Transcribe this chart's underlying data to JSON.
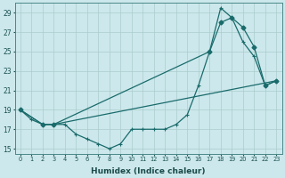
{
  "xlabel": "Humidex (Indice chaleur)",
  "bg_color": "#cce8ec",
  "grid_color": "#aacccc",
  "line_color": "#1a6b6b",
  "xlim": [
    -0.5,
    23.5
  ],
  "ylim": [
    14.5,
    30.0
  ],
  "xticks": [
    0,
    1,
    2,
    3,
    4,
    5,
    6,
    7,
    8,
    9,
    10,
    11,
    12,
    13,
    14,
    15,
    16,
    17,
    18,
    19,
    20,
    21,
    22,
    23
  ],
  "yticks": [
    15,
    17,
    19,
    21,
    23,
    25,
    27,
    29
  ],
  "line1_x": [
    0,
    1,
    2,
    3,
    4,
    5,
    6,
    7,
    8,
    9,
    10,
    11,
    12,
    13,
    14,
    15,
    16,
    17,
    18,
    19,
    20,
    21,
    22,
    23
  ],
  "line1_y": [
    19,
    18,
    17.5,
    17.5,
    17.5,
    16.5,
    16,
    15.5,
    15,
    15.5,
    17,
    17,
    17,
    17,
    17.5,
    18.5,
    21.5,
    25.0,
    29.5,
    28.5,
    26.0,
    24.5,
    21.5,
    22
  ],
  "line2_x": [
    0,
    2,
    3,
    17,
    18,
    19,
    20,
    21,
    22,
    23
  ],
  "line2_y": [
    19,
    17.5,
    17.5,
    25.0,
    28.0,
    28.5,
    27.5,
    25.5,
    21.5,
    22
  ],
  "line3_x": [
    0,
    2,
    3,
    23
  ],
  "line3_y": [
    19,
    17.5,
    17.5,
    22
  ]
}
